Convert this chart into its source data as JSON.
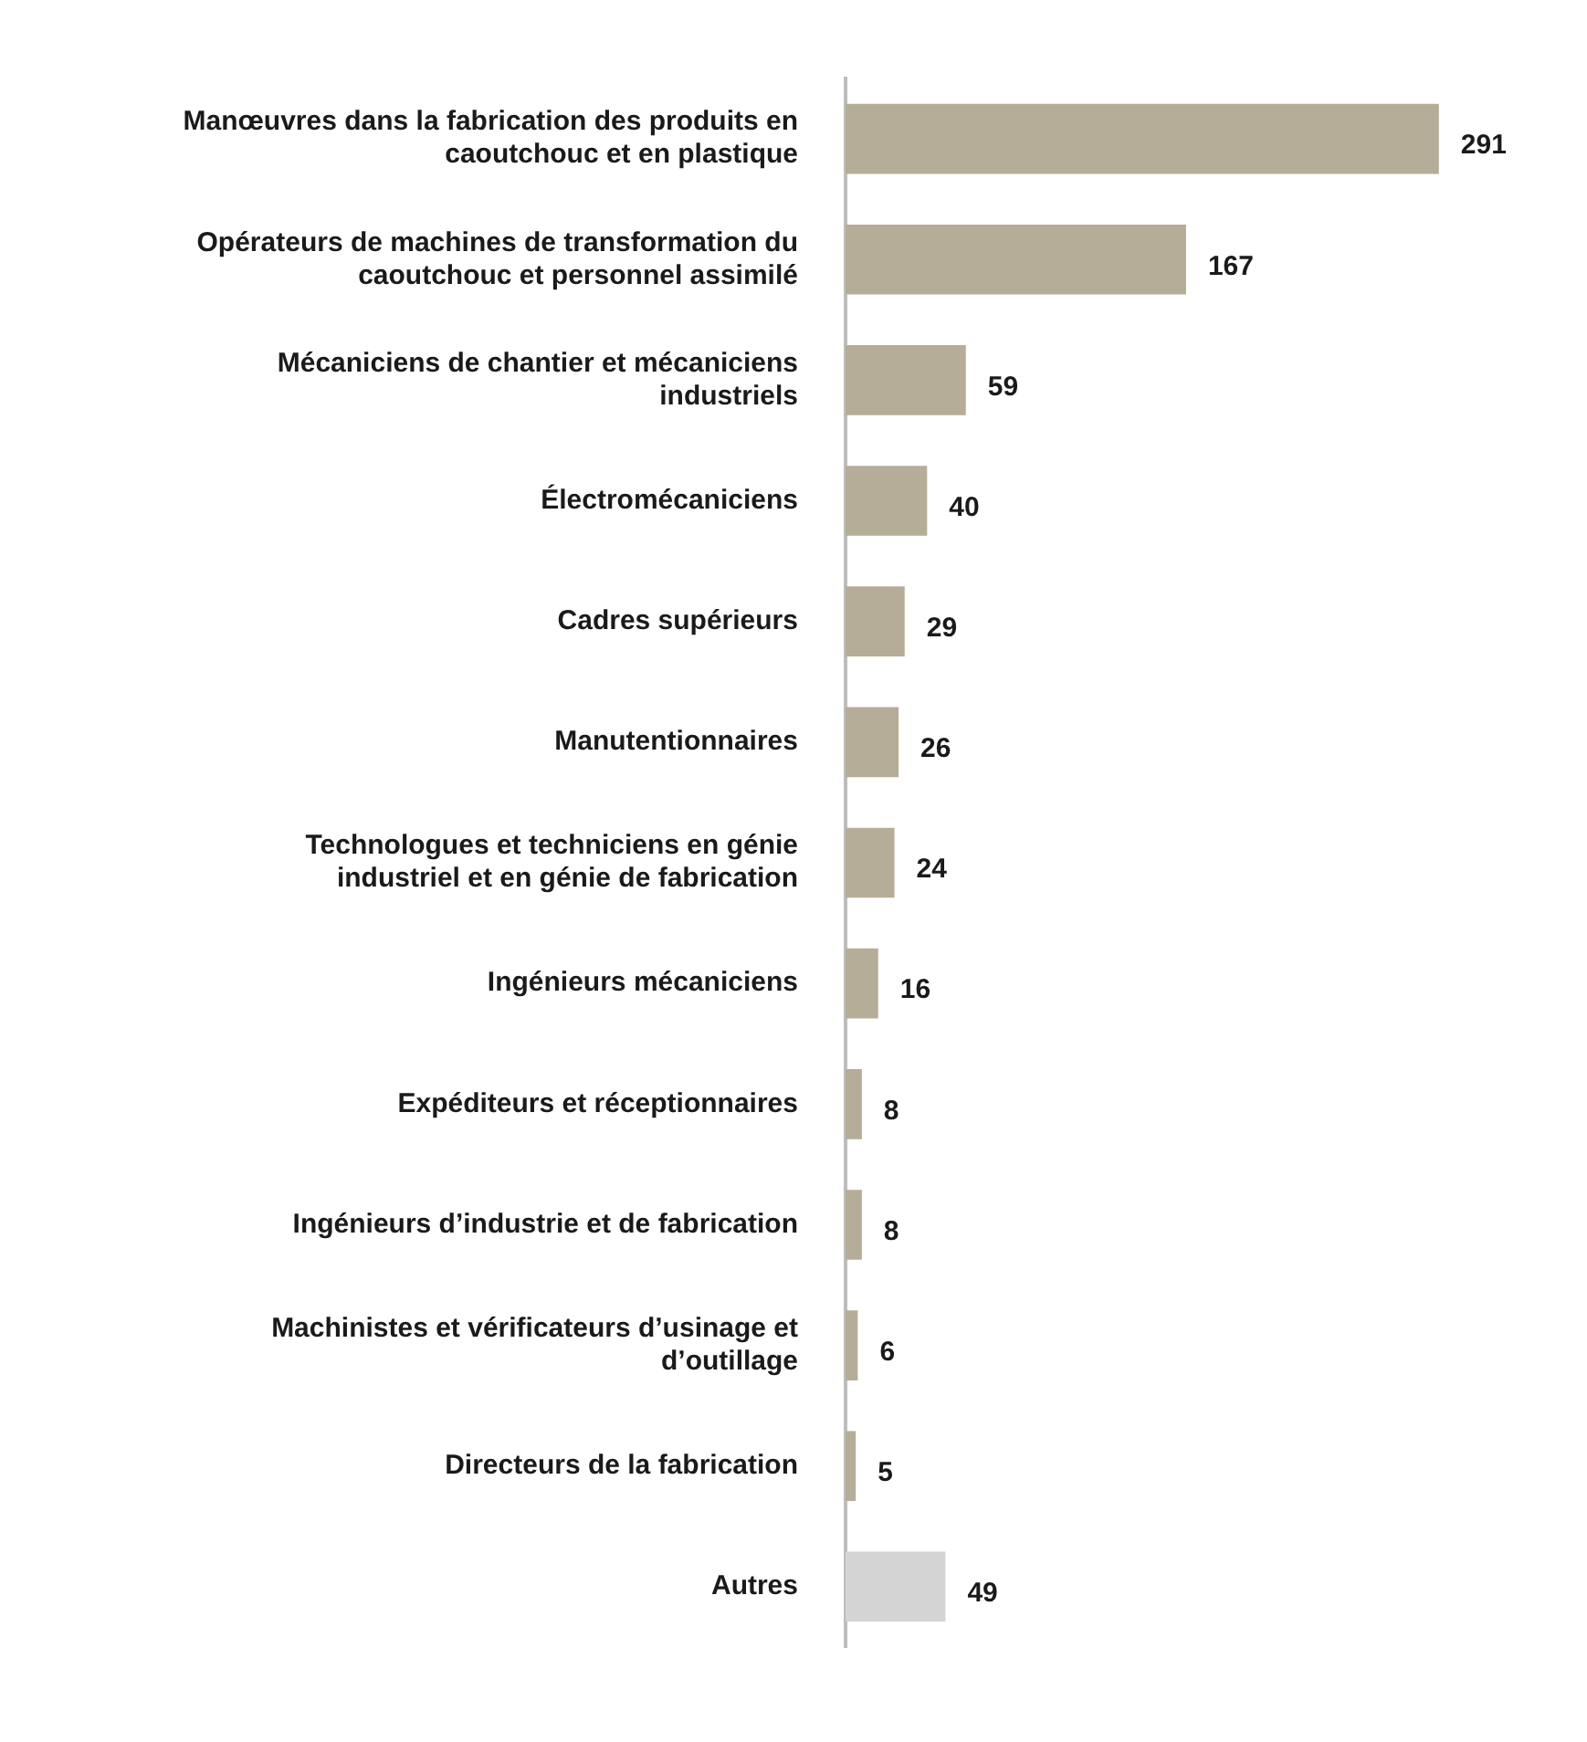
{
  "chart_data": {
    "type": "bar",
    "orientation": "horizontal",
    "data_labels": true,
    "categories": [
      "Manœuvres dans la fabrication des produits en caoutchouc et en plastique",
      "Opérateurs de machines de transformation du caoutchouc et personnel assimilé",
      "Mécaniciens de chantier et mécaniciens industriels",
      "Électromécaniciens",
      "Cadres supérieurs",
      "Manutentionnaires",
      "Technologues et techniciens en génie industriel et en génie de fabrication",
      "Ingénieurs mécaniciens",
      "Expéditeurs et réceptionnaires",
      "Ingénieurs d’industrie et de fabrication",
      "Machinistes et vérificateurs d’usinage et d’outillage",
      "Directeurs de la fabrication",
      "Autres"
    ],
    "values": [
      291,
      167,
      59,
      40,
      29,
      26,
      24,
      16,
      8,
      8,
      6,
      5,
      49
    ],
    "colors": [
      "#b6ad98",
      "#b6ad98",
      "#b6ad98",
      "#b6ad98",
      "#b6ad98",
      "#b6ad98",
      "#b6ad98",
      "#b6ad98",
      "#b6ad98",
      "#b6ad98",
      "#b6ad98",
      "#b6ad98",
      "#d4d4d4"
    ]
  }
}
